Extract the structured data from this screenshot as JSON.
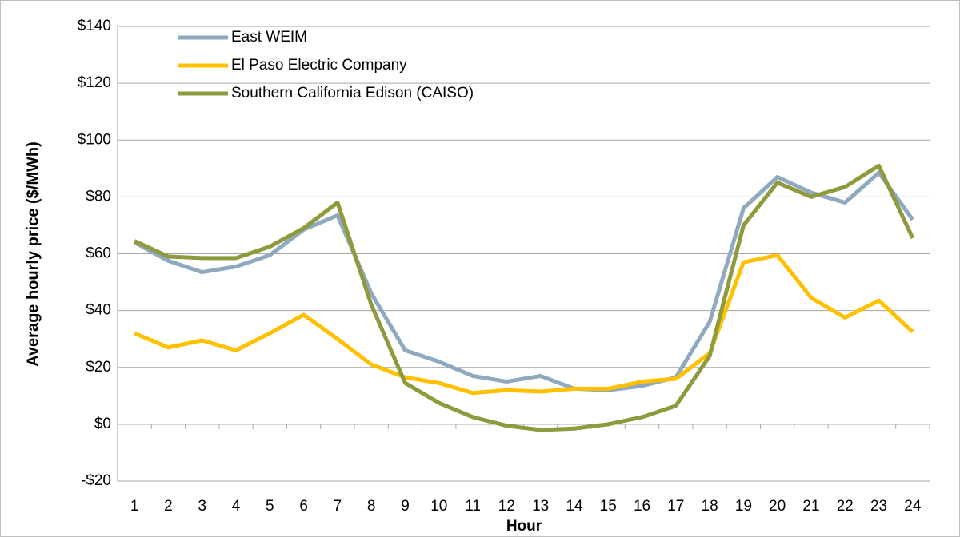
{
  "chart_data": {
    "type": "line",
    "x_label": "Hour",
    "y_label": "Average hourly price ($/MWh)",
    "categories": [
      1,
      2,
      3,
      4,
      5,
      6,
      7,
      8,
      9,
      10,
      11,
      12,
      13,
      14,
      15,
      16,
      17,
      18,
      19,
      20,
      21,
      22,
      23,
      24
    ],
    "series": [
      {
        "name": "East WEIM",
        "color": "#8fa9bf",
        "values": [
          64,
          57.5,
          53.5,
          55.5,
          59.5,
          68.5,
          73.5,
          46,
          26,
          22,
          17,
          15,
          17,
          12.5,
          12,
          13.5,
          16.5,
          36,
          76,
          87,
          81.5,
          78,
          88.5,
          72
        ]
      },
      {
        "name": "El Paso Electric Company",
        "color": "#ffc000",
        "values": [
          32,
          27,
          29.5,
          26,
          32,
          38.5,
          30,
          21,
          16.5,
          14.5,
          11,
          12,
          11.5,
          12.5,
          12.5,
          15,
          16,
          25,
          57,
          59.5,
          44.5,
          37.5,
          43.5,
          32.5
        ]
      },
      {
        "name": "Southern California Edison (CAISO)",
        "color": "#8f9a3c",
        "values": [
          64.5,
          59,
          58.5,
          58.5,
          62.5,
          69,
          78,
          42,
          14.5,
          7.5,
          2.5,
          -0.5,
          -2,
          -1.5,
          0,
          2.5,
          6.5,
          24,
          70,
          85,
          80,
          83.5,
          91,
          65.5
        ]
      }
    ],
    "ylim": [
      -20,
      140
    ],
    "yticks": [
      {
        "value": -20,
        "label": "-$20"
      },
      {
        "value": 0,
        "label": "$0"
      },
      {
        "value": 20,
        "label": "$20"
      },
      {
        "value": 40,
        "label": "$40"
      },
      {
        "value": 60,
        "label": "$60"
      },
      {
        "value": 80,
        "label": "$80"
      },
      {
        "value": 100,
        "label": "$100"
      },
      {
        "value": 120,
        "label": "$120"
      },
      {
        "value": 140,
        "label": "$140"
      }
    ],
    "grid": true,
    "legend": "top-left"
  }
}
